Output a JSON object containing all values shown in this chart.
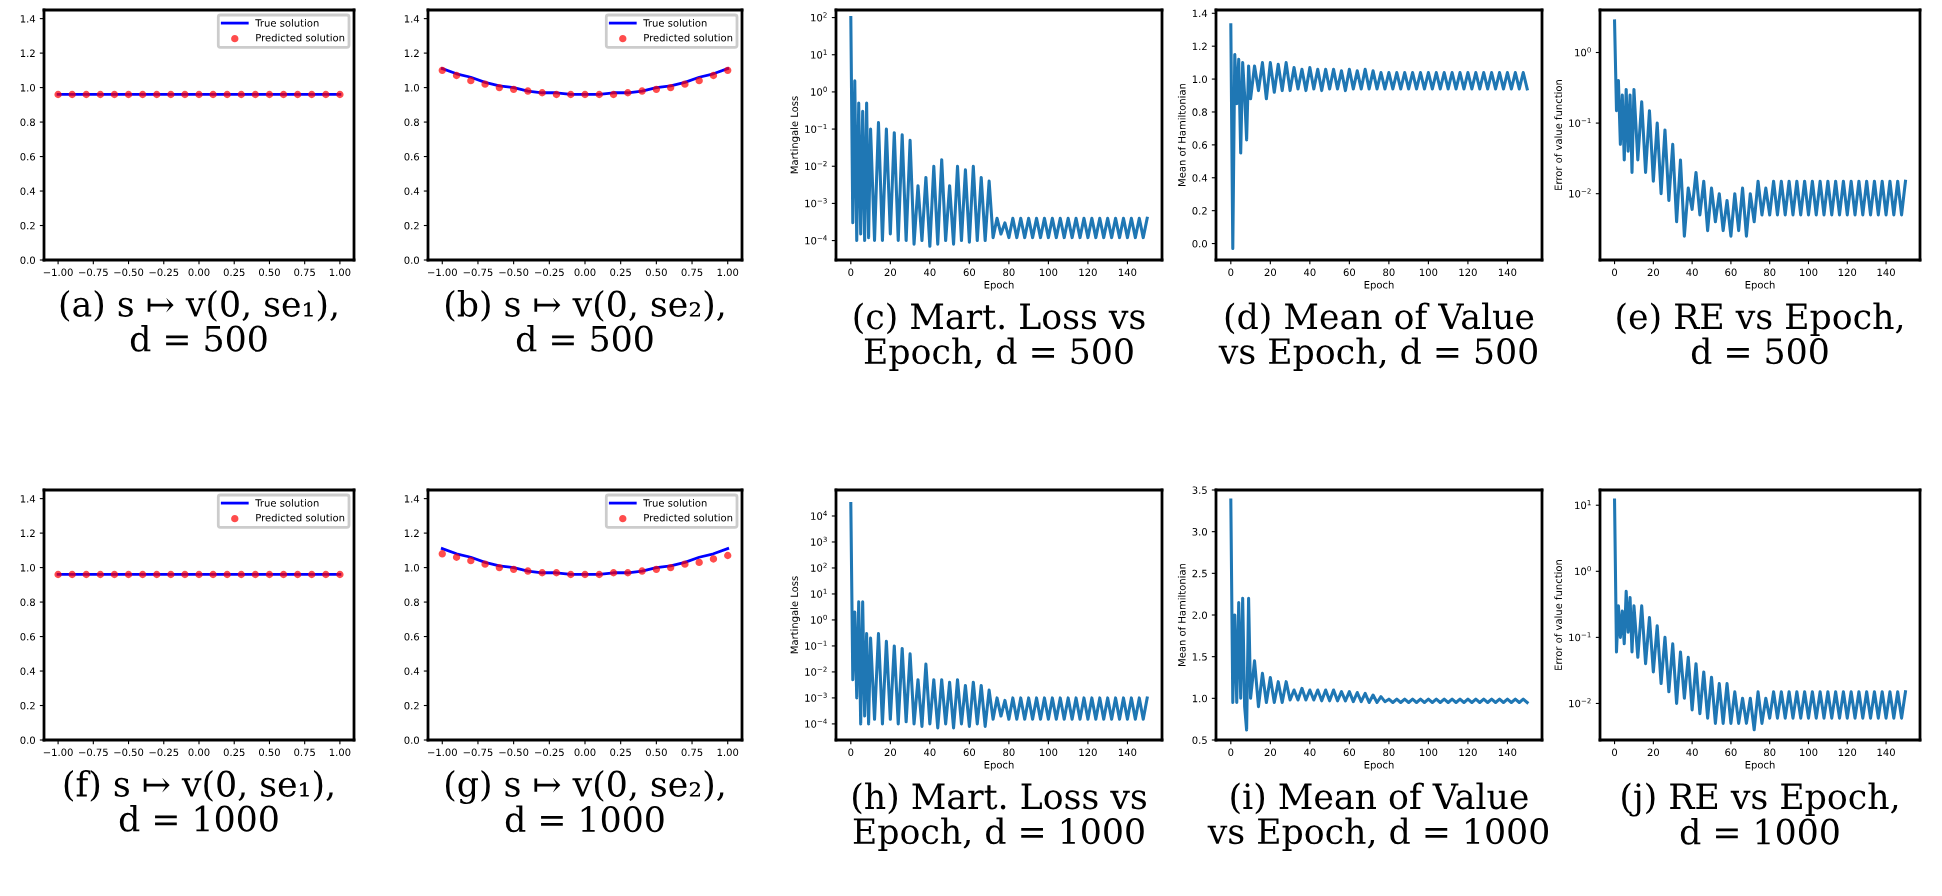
{
  "chart_data": [
    {
      "type": "line",
      "title": "(a) s ↦ v(0, se₁),\nd = 500",
      "legend": "top right",
      "xlim": [
        -1.1,
        1.1
      ],
      "ylim": [
        0,
        1.45
      ],
      "xticks": [
        {
          "value": -1,
          "label": "−1.00"
        },
        {
          "value": -0.75,
          "label": "−0.75"
        },
        {
          "value": -0.5,
          "label": "−0.50"
        },
        {
          "value": -0.25,
          "label": "−0.25"
        },
        {
          "value": 0,
          "label": "0.00"
        },
        {
          "value": 0.25,
          "label": "0.25"
        },
        {
          "value": 0.5,
          "label": "0.50"
        },
        {
          "value": 0.75,
          "label": "0.75"
        },
        {
          "value": 1,
          "label": "1.00"
        }
      ],
      "yticks": [
        {
          "value": 0,
          "label": "0.0"
        },
        0.2,
        0.4,
        0.6,
        0.8,
        {
          "value": 1,
          "label": "1.0"
        },
        1.2,
        1.4
      ],
      "x": [
        -1.0,
        -0.9,
        -0.8,
        -0.7,
        -0.6,
        -0.5,
        -0.4,
        -0.3,
        -0.2,
        -0.1,
        0.0,
        0.1,
        0.2,
        0.3,
        0.4,
        0.5,
        0.6,
        0.7,
        0.8,
        0.9,
        1.0
      ],
      "series": [
        {
          "name": "True solution",
          "type": "line",
          "color": "#0000ff",
          "values": [
            0.96,
            0.96,
            0.96,
            0.96,
            0.96,
            0.96,
            0.96,
            0.96,
            0.96,
            0.96,
            0.96,
            0.96,
            0.96,
            0.96,
            0.96,
            0.96,
            0.96,
            0.96,
            0.96,
            0.96,
            0.96
          ]
        },
        {
          "name": "Predicted solution",
          "type": "scatter",
          "color": "#ff0000",
          "values": [
            0.96,
            0.96,
            0.96,
            0.96,
            0.96,
            0.96,
            0.96,
            0.96,
            0.96,
            0.96,
            0.96,
            0.96,
            0.96,
            0.96,
            0.96,
            0.96,
            0.96,
            0.96,
            0.96,
            0.96,
            0.96
          ]
        }
      ]
    },
    {
      "type": "line",
      "title": "(b) s ↦ v(0, se₂),\nd = 500",
      "legend": "top right",
      "xlim": [
        -1.1,
        1.1
      ],
      "ylim": [
        0,
        1.45
      ],
      "xticks": [
        {
          "value": -1,
          "label": "−1.00"
        },
        {
          "value": -0.75,
          "label": "−0.75"
        },
        {
          "value": -0.5,
          "label": "−0.50"
        },
        {
          "value": -0.25,
          "label": "−0.25"
        },
        {
          "value": 0,
          "label": "0.00"
        },
        {
          "value": 0.25,
          "label": "0.25"
        },
        {
          "value": 0.5,
          "label": "0.50"
        },
        {
          "value": 0.75,
          "label": "0.75"
        },
        {
          "value": 1,
          "label": "1.00"
        }
      ],
      "yticks": [
        {
          "value": 0,
          "label": "0.0"
        },
        0.2,
        0.4,
        0.6,
        0.8,
        {
          "value": 1,
          "label": "1.0"
        },
        1.2,
        1.4
      ],
      "x": [
        -1.0,
        -0.9,
        -0.8,
        -0.7,
        -0.6,
        -0.5,
        -0.4,
        -0.3,
        -0.2,
        -0.1,
        0.0,
        0.1,
        0.2,
        0.3,
        0.4,
        0.5,
        0.6,
        0.7,
        0.8,
        0.9,
        1.0
      ],
      "series": [
        {
          "name": "True solution",
          "type": "line",
          "color": "#0000ff",
          "values": [
            1.11,
            1.08,
            1.06,
            1.03,
            1.01,
            1.0,
            0.98,
            0.97,
            0.97,
            0.96,
            0.96,
            0.96,
            0.97,
            0.97,
            0.98,
            1.0,
            1.01,
            1.03,
            1.06,
            1.08,
            1.11
          ]
        },
        {
          "name": "Predicted solution",
          "type": "scatter",
          "color": "#ff0000",
          "values": [
            1.1,
            1.07,
            1.04,
            1.02,
            1.0,
            0.99,
            0.98,
            0.97,
            0.96,
            0.96,
            0.96,
            0.96,
            0.96,
            0.97,
            0.98,
            0.99,
            1.0,
            1.02,
            1.04,
            1.07,
            1.1
          ]
        }
      ]
    },
    {
      "type": "line",
      "title": "(c) Mart. Loss vs\nEpoch, d = 500",
      "xlabel": "Epoch",
      "ylabel": "Martingale Loss",
      "log": "y",
      "color": "#1f77b4",
      "xlim": [
        -7.5,
        157.5
      ],
      "ylim": [
        3e-05,
        160
      ],
      "xticks": [
        0,
        20,
        40,
        60,
        80,
        100,
        120,
        140
      ],
      "yticks": [
        {
          "value": 0.0001,
          "label": "10$^{−4}$"
        },
        {
          "value": 0.001,
          "label": "10$^{−3}$"
        },
        {
          "value": 0.01,
          "label": "10$^{−2}$"
        },
        {
          "value": 0.1,
          "label": "10$^{−1}$"
        },
        {
          "value": 1,
          "label": "10$^{0}$"
        },
        {
          "value": 10,
          "label": "10$^{1}$"
        },
        {
          "value": 100,
          "label": "10$^{2}$"
        }
      ],
      "x": [
        0,
        1,
        2,
        3,
        4,
        5,
        6,
        7,
        8,
        9,
        10,
        12,
        14,
        16,
        18,
        20,
        22,
        24,
        26,
        28,
        30,
        32,
        34,
        36,
        38,
        40,
        42,
        44,
        46,
        48,
        50,
        52,
        54,
        56,
        58,
        60,
        62,
        64,
        66,
        68,
        70,
        72,
        74,
        76,
        78,
        80,
        82,
        84,
        86,
        88,
        90,
        92,
        94,
        96,
        98,
        100,
        102,
        104,
        106,
        108,
        110,
        112,
        114,
        116,
        118,
        120,
        122,
        124,
        126,
        128,
        130,
        132,
        134,
        136,
        138,
        140,
        142,
        144,
        146,
        148,
        150
      ],
      "values": [
        100,
        0.0003,
        2,
        0.0001,
        0.5,
        0.00015,
        0.3,
        0.0001,
        0.5,
        0.00012,
        0.1,
        0.0001,
        0.15,
        0.0001,
        0.1,
        0.00015,
        0.08,
        0.0001,
        0.07,
        0.0001,
        0.05,
        8e-05,
        0.003,
        0.0001,
        0.005,
        7e-05,
        0.01,
        8e-05,
        0.015,
        0.0001,
        0.003,
        8e-05,
        0.01,
        0.0001,
        0.008,
        9e-05,
        0.01,
        0.0001,
        0.005,
        0.0001,
        0.004,
        0.00012,
        0.0004,
        0.00015,
        0.0003,
        0.00012,
        0.0004,
        0.00012,
        0.0004,
        0.00012,
        0.0004,
        0.00012,
        0.0004,
        0.00012,
        0.0004,
        0.00012,
        0.0004,
        0.00012,
        0.0004,
        0.00012,
        0.0004,
        0.00012,
        0.0004,
        0.00012,
        0.0004,
        0.00012,
        0.0004,
        0.00012,
        0.0004,
        0.00012,
        0.0004,
        0.00012,
        0.0004,
        0.00012,
        0.0004,
        0.00012,
        0.0004,
        0.00012,
        0.0004,
        0.00012,
        0.0004
      ]
    },
    {
      "type": "line",
      "title": "(d) Mean of Value\nvs Epoch, d = 500",
      "xlabel": "Epoch",
      "ylabel": "Mean of Hamiltonian",
      "color": "#1f77b4",
      "xlim": [
        -7.5,
        157.5
      ],
      "ylim": [
        -0.1,
        1.42
      ],
      "xticks": [
        0,
        20,
        40,
        60,
        80,
        100,
        120,
        140
      ],
      "yticks": [
        {
          "value": 0,
          "label": "0.0"
        },
        0.2,
        0.4,
        0.6,
        0.8,
        {
          "value": 1,
          "label": "1.0"
        },
        1.2,
        1.4
      ],
      "x": [
        0,
        1,
        2,
        3,
        4,
        5,
        6,
        7,
        8,
        9,
        10,
        12,
        14,
        16,
        18,
        20,
        22,
        24,
        26,
        28,
        30,
        32,
        34,
        36,
        38,
        40,
        42,
        44,
        46,
        48,
        50,
        52,
        54,
        56,
        58,
        60,
        62,
        64,
        66,
        68,
        70,
        72,
        74,
        76,
        78,
        80,
        82,
        84,
        86,
        88,
        90,
        92,
        94,
        96,
        98,
        100,
        102,
        104,
        106,
        108,
        110,
        112,
        114,
        116,
        118,
        120,
        122,
        124,
        126,
        128,
        130,
        132,
        134,
        136,
        138,
        140,
        142,
        144,
        146,
        148,
        150
      ],
      "values": [
        1.33,
        -0.03,
        1.15,
        0.85,
        1.12,
        0.55,
        1.1,
        0.9,
        0.63,
        1.08,
        0.88,
        1.08,
        0.93,
        1.1,
        0.88,
        1.1,
        0.92,
        1.09,
        0.93,
        1.1,
        0.93,
        1.07,
        0.94,
        1.06,
        0.93,
        1.07,
        0.94,
        1.06,
        0.93,
        1.06,
        0.94,
        1.06,
        0.94,
        1.05,
        0.93,
        1.06,
        0.94,
        1.05,
        0.94,
        1.06,
        0.94,
        1.05,
        0.94,
        1.04,
        0.94,
        1.04,
        0.94,
        1.04,
        0.94,
        1.04,
        0.94,
        1.04,
        0.94,
        1.04,
        0.94,
        1.04,
        0.94,
        1.04,
        0.94,
        1.04,
        0.94,
        1.04,
        0.94,
        1.04,
        0.94,
        1.04,
        0.94,
        1.04,
        0.94,
        1.04,
        0.94,
        1.04,
        0.94,
        1.04,
        0.94,
        1.04,
        0.94,
        1.04,
        0.94,
        1.04,
        0.94
      ]
    },
    {
      "type": "line",
      "title": "(e) RE vs Epoch,\nd = 500",
      "xlabel": "Epoch",
      "ylabel": "Error of value function",
      "log": "y",
      "color": "#1f77b4",
      "xlim": [
        -7.5,
        157.5
      ],
      "ylim": [
        0.00115,
        4
      ],
      "xticks": [
        0,
        20,
        40,
        60,
        80,
        100,
        120,
        140
      ],
      "yticks": [
        {
          "value": 0.01,
          "label": "10$^{−2}$"
        },
        {
          "value": 0.1,
          "label": "10$^{−1}$"
        },
        {
          "value": 1,
          "label": "10$^{0}$"
        }
      ],
      "x": [
        0,
        1,
        2,
        3,
        4,
        5,
        6,
        7,
        8,
        9,
        10,
        12,
        14,
        16,
        18,
        20,
        22,
        24,
        26,
        28,
        30,
        32,
        34,
        36,
        38,
        40,
        42,
        44,
        46,
        48,
        50,
        52,
        54,
        56,
        58,
        60,
        62,
        64,
        66,
        68,
        70,
        72,
        74,
        76,
        78,
        80,
        82,
        84,
        86,
        88,
        90,
        92,
        94,
        96,
        98,
        100,
        102,
        104,
        106,
        108,
        110,
        112,
        114,
        116,
        118,
        120,
        122,
        124,
        126,
        128,
        130,
        132,
        134,
        136,
        138,
        140,
        142,
        144,
        146,
        148,
        150
      ],
      "values": [
        2.8,
        0.15,
        0.4,
        0.05,
        0.25,
        0.03,
        0.3,
        0.04,
        0.25,
        0.02,
        0.3,
        0.03,
        0.2,
        0.02,
        0.15,
        0.015,
        0.1,
        0.01,
        0.08,
        0.008,
        0.05,
        0.004,
        0.03,
        0.0025,
        0.012,
        0.006,
        0.02,
        0.005,
        0.015,
        0.003,
        0.012,
        0.004,
        0.01,
        0.003,
        0.008,
        0.0025,
        0.01,
        0.003,
        0.012,
        0.0025,
        0.01,
        0.004,
        0.015,
        0.005,
        0.012,
        0.005,
        0.015,
        0.005,
        0.015,
        0.005,
        0.015,
        0.005,
        0.015,
        0.005,
        0.015,
        0.005,
        0.015,
        0.005,
        0.015,
        0.005,
        0.015,
        0.005,
        0.015,
        0.005,
        0.015,
        0.005,
        0.015,
        0.005,
        0.015,
        0.005,
        0.015,
        0.005,
        0.015,
        0.005,
        0.015,
        0.005,
        0.015,
        0.005,
        0.015,
        0.005,
        0.015
      ]
    },
    {
      "type": "line",
      "title": "(f) s ↦ v(0, se₁),\nd = 1000",
      "legend": "top right",
      "xlim": [
        -1.1,
        1.1
      ],
      "ylim": [
        0,
        1.45
      ],
      "xticks": [
        {
          "value": -1,
          "label": "−1.00"
        },
        {
          "value": -0.75,
          "label": "−0.75"
        },
        {
          "value": -0.5,
          "label": "−0.50"
        },
        {
          "value": -0.25,
          "label": "−0.25"
        },
        {
          "value": 0,
          "label": "0.00"
        },
        {
          "value": 0.25,
          "label": "0.25"
        },
        {
          "value": 0.5,
          "label": "0.50"
        },
        {
          "value": 0.75,
          "label": "0.75"
        },
        {
          "value": 1,
          "label": "1.00"
        }
      ],
      "yticks": [
        {
          "value": 0,
          "label": "0.0"
        },
        0.2,
        0.4,
        0.6,
        0.8,
        {
          "value": 1,
          "label": "1.0"
        },
        1.2,
        1.4
      ],
      "x": [
        -1.0,
        -0.9,
        -0.8,
        -0.7,
        -0.6,
        -0.5,
        -0.4,
        -0.3,
        -0.2,
        -0.1,
        0.0,
        0.1,
        0.2,
        0.3,
        0.4,
        0.5,
        0.6,
        0.7,
        0.8,
        0.9,
        1.0
      ],
      "series": [
        {
          "name": "True solution",
          "type": "line",
          "color": "#0000ff",
          "values": [
            0.96,
            0.96,
            0.96,
            0.96,
            0.96,
            0.96,
            0.96,
            0.96,
            0.96,
            0.96,
            0.96,
            0.96,
            0.96,
            0.96,
            0.96,
            0.96,
            0.96,
            0.96,
            0.96,
            0.96,
            0.96
          ]
        },
        {
          "name": "Predicted solution",
          "type": "scatter",
          "color": "#ff0000",
          "values": [
            0.96,
            0.96,
            0.96,
            0.96,
            0.96,
            0.96,
            0.96,
            0.96,
            0.96,
            0.96,
            0.96,
            0.96,
            0.96,
            0.96,
            0.96,
            0.96,
            0.96,
            0.96,
            0.96,
            0.96,
            0.96
          ]
        }
      ]
    },
    {
      "type": "line",
      "title": "(g) s ↦ v(0, se₂),\nd = 1000",
      "legend": "top right",
      "xlim": [
        -1.1,
        1.1
      ],
      "ylim": [
        0,
        1.45
      ],
      "xticks": [
        {
          "value": -1,
          "label": "−1.00"
        },
        {
          "value": -0.75,
          "label": "−0.75"
        },
        {
          "value": -0.5,
          "label": "−0.50"
        },
        {
          "value": -0.25,
          "label": "−0.25"
        },
        {
          "value": 0,
          "label": "0.00"
        },
        {
          "value": 0.25,
          "label": "0.25"
        },
        {
          "value": 0.5,
          "label": "0.50"
        },
        {
          "value": 0.75,
          "label": "0.75"
        },
        {
          "value": 1,
          "label": "1.00"
        }
      ],
      "yticks": [
        {
          "value": 0,
          "label": "0.0"
        },
        0.2,
        0.4,
        0.6,
        0.8,
        {
          "value": 1,
          "label": "1.0"
        },
        1.2,
        1.4
      ],
      "x": [
        -1.0,
        -0.9,
        -0.8,
        -0.7,
        -0.6,
        -0.5,
        -0.4,
        -0.3,
        -0.2,
        -0.1,
        0.0,
        0.1,
        0.2,
        0.3,
        0.4,
        0.5,
        0.6,
        0.7,
        0.8,
        0.9,
        1.0
      ],
      "series": [
        {
          "name": "True solution",
          "type": "line",
          "color": "#0000ff",
          "values": [
            1.11,
            1.08,
            1.06,
            1.03,
            1.01,
            1.0,
            0.98,
            0.97,
            0.97,
            0.96,
            0.96,
            0.96,
            0.97,
            0.97,
            0.98,
            1.0,
            1.01,
            1.03,
            1.06,
            1.08,
            1.11
          ]
        },
        {
          "name": "Predicted solution",
          "type": "scatter",
          "color": "#ff0000",
          "values": [
            1.08,
            1.06,
            1.04,
            1.02,
            1.0,
            0.99,
            0.98,
            0.97,
            0.97,
            0.96,
            0.96,
            0.96,
            0.97,
            0.97,
            0.98,
            0.99,
            1.0,
            1.02,
            1.03,
            1.05,
            1.07
          ]
        }
      ]
    },
    {
      "type": "line",
      "title": "(h) Mart. Loss vs\nEpoch, d = 1000",
      "xlabel": "Epoch",
      "ylabel": "Martingale Loss",
      "log": "y",
      "color": "#1f77b4",
      "xlim": [
        -7.5,
        157.5
      ],
      "ylim": [
        2.4e-05,
        100000.0
      ],
      "xticks": [
        0,
        20,
        40,
        60,
        80,
        100,
        120,
        140
      ],
      "yticks": [
        {
          "value": 0.0001,
          "label": "10$^{−4}$"
        },
        {
          "value": 0.001,
          "label": "10$^{−3}$"
        },
        {
          "value": 0.01,
          "label": "10$^{−2}$"
        },
        {
          "value": 0.1,
          "label": "10$^{−1}$"
        },
        {
          "value": 1,
          "label": "10$^{0}$"
        },
        {
          "value": 10,
          "label": "10$^{1}$"
        },
        {
          "value": 100,
          "label": "10$^{2}$"
        },
        {
          "value": 1000,
          "label": "10$^{3}$"
        },
        {
          "value": 10000,
          "label": "10$^{4}$"
        }
      ],
      "x": [
        0,
        1,
        2,
        3,
        4,
        5,
        6,
        7,
        8,
        9,
        10,
        12,
        14,
        16,
        18,
        20,
        22,
        24,
        26,
        28,
        30,
        32,
        34,
        36,
        38,
        40,
        42,
        44,
        46,
        48,
        50,
        52,
        54,
        56,
        58,
        60,
        62,
        64,
        66,
        68,
        70,
        72,
        74,
        76,
        78,
        80,
        82,
        84,
        86,
        88,
        90,
        92,
        94,
        96,
        98,
        100,
        102,
        104,
        106,
        108,
        110,
        112,
        114,
        116,
        118,
        120,
        122,
        124,
        126,
        128,
        130,
        132,
        134,
        136,
        138,
        140,
        142,
        144,
        146,
        148,
        150
      ],
      "values": [
        30000.0,
        0.005,
        2,
        0.001,
        5,
        0.0001,
        5,
        0.0002,
        0.3,
        0.0001,
        0.2,
        0.00015,
        0.3,
        0.0001,
        0.15,
        0.00015,
        0.1,
        0.0001,
        0.08,
        0.00012,
        0.05,
        0.0001,
        0.005,
        8e-05,
        0.02,
        0.0001,
        0.005,
        7e-05,
        0.005,
        0.0001,
        0.004,
        7e-05,
        0.005,
        0.0001,
        0.003,
        8e-05,
        0.004,
        0.0001,
        0.003,
        8e-05,
        0.002,
        0.00015,
        0.001,
        0.0002,
        0.0008,
        0.00015,
        0.001,
        0.00015,
        0.001,
        0.00015,
        0.001,
        0.00015,
        0.001,
        0.00015,
        0.001,
        0.00015,
        0.001,
        0.00015,
        0.001,
        0.00015,
        0.001,
        0.00015,
        0.001,
        0.00015,
        0.001,
        0.00015,
        0.001,
        0.00015,
        0.001,
        0.00015,
        0.001,
        0.00015,
        0.001,
        0.00015,
        0.001,
        0.00015,
        0.001,
        0.00015,
        0.001,
        0.00015,
        0.001
      ]
    },
    {
      "type": "line",
      "title": "(i) Mean of Value\nvs Epoch, d = 1000",
      "xlabel": "Epoch",
      "ylabel": "Mean of Hamiltonian",
      "color": "#1f77b4",
      "xlim": [
        -7.5,
        157.5
      ],
      "ylim": [
        0.5,
        3.5
      ],
      "xticks": [
        0,
        20,
        40,
        60,
        80,
        100,
        120,
        140
      ],
      "yticks": [
        0.5,
        {
          "value": 1,
          "label": "1.0"
        },
        1.5,
        {
          "value": 2,
          "label": "2.0"
        },
        2.5,
        {
          "value": 3,
          "label": "3.0"
        },
        3.5
      ],
      "x": [
        0,
        1,
        2,
        3,
        4,
        5,
        6,
        7,
        8,
        9,
        10,
        12,
        14,
        16,
        18,
        20,
        22,
        24,
        26,
        28,
        30,
        32,
        34,
        36,
        38,
        40,
        42,
        44,
        46,
        48,
        50,
        52,
        54,
        56,
        58,
        60,
        62,
        64,
        66,
        68,
        70,
        72,
        74,
        76,
        78,
        80,
        82,
        84,
        86,
        88,
        90,
        92,
        94,
        96,
        98,
        100,
        102,
        104,
        106,
        108,
        110,
        112,
        114,
        116,
        118,
        120,
        122,
        124,
        126,
        128,
        130,
        132,
        134,
        136,
        138,
        140,
        142,
        144,
        146,
        148,
        150
      ],
      "values": [
        3.38,
        0.95,
        2.0,
        0.95,
        2.15,
        1.0,
        2.2,
        0.9,
        0.62,
        2.2,
        1.0,
        1.45,
        0.9,
        1.3,
        0.95,
        1.25,
        0.95,
        1.2,
        0.95,
        1.2,
        0.98,
        1.1,
        0.98,
        1.12,
        0.98,
        1.1,
        0.98,
        1.1,
        0.97,
        1.1,
        0.97,
        1.1,
        0.97,
        1.08,
        0.97,
        1.08,
        0.96,
        1.07,
        0.96,
        1.06,
        0.95,
        1.04,
        0.95,
        1.02,
        0.96,
        0.99,
        0.95,
        0.99,
        0.95,
        0.99,
        0.95,
        0.99,
        0.95,
        0.99,
        0.95,
        0.99,
        0.95,
        0.99,
        0.95,
        0.99,
        0.95,
        0.99,
        0.95,
        0.99,
        0.95,
        0.99,
        0.95,
        0.99,
        0.95,
        0.99,
        0.95,
        0.99,
        0.95,
        0.99,
        0.95,
        0.99,
        0.95,
        0.99,
        0.95,
        0.99,
        0.95
      ]
    },
    {
      "type": "line",
      "title": "(j) RE vs Epoch,\nd = 1000",
      "xlabel": "Epoch",
      "ylabel": "Error of value function",
      "log": "y",
      "color": "#1f77b4",
      "xlim": [
        -7.5,
        157.5
      ],
      "ylim": [
        0.0028,
        17
      ],
      "xticks": [
        0,
        20,
        40,
        60,
        80,
        100,
        120,
        140
      ],
      "yticks": [
        {
          "value": 0.01,
          "label": "10$^{−2}$"
        },
        {
          "value": 0.1,
          "label": "10$^{−1}$"
        },
        {
          "value": 1,
          "label": "10$^{0}$"
        },
        {
          "value": 10,
          "label": "10$^{1}$"
        }
      ],
      "x": [
        0,
        1,
        2,
        3,
        4,
        5,
        6,
        7,
        8,
        9,
        10,
        12,
        14,
        16,
        18,
        20,
        22,
        24,
        26,
        28,
        30,
        32,
        34,
        36,
        38,
        40,
        42,
        44,
        46,
        48,
        50,
        52,
        54,
        56,
        58,
        60,
        62,
        64,
        66,
        68,
        70,
        72,
        74,
        76,
        78,
        80,
        82,
        84,
        86,
        88,
        90,
        92,
        94,
        96,
        98,
        100,
        102,
        104,
        106,
        108,
        110,
        112,
        114,
        116,
        118,
        120,
        122,
        124,
        126,
        128,
        130,
        132,
        134,
        136,
        138,
        140,
        142,
        144,
        146,
        148,
        150
      ],
      "values": [
        12,
        0.06,
        0.3,
        0.1,
        0.25,
        0.08,
        0.5,
        0.12,
        0.4,
        0.06,
        0.3,
        0.05,
        0.3,
        0.04,
        0.2,
        0.03,
        0.15,
        0.02,
        0.1,
        0.015,
        0.08,
        0.01,
        0.06,
        0.012,
        0.05,
        0.008,
        0.04,
        0.007,
        0.03,
        0.006,
        0.025,
        0.005,
        0.02,
        0.005,
        0.02,
        0.005,
        0.015,
        0.005,
        0.012,
        0.005,
        0.012,
        0.004,
        0.015,
        0.005,
        0.012,
        0.006,
        0.015,
        0.006,
        0.015,
        0.006,
        0.015,
        0.006,
        0.015,
        0.006,
        0.015,
        0.006,
        0.015,
        0.006,
        0.015,
        0.006,
        0.015,
        0.006,
        0.015,
        0.006,
        0.015,
        0.006,
        0.015,
        0.006,
        0.015,
        0.006,
        0.015,
        0.006,
        0.015,
        0.006,
        0.015,
        0.006,
        0.015,
        0.006,
        0.015,
        0.006,
        0.015
      ]
    }
  ]
}
